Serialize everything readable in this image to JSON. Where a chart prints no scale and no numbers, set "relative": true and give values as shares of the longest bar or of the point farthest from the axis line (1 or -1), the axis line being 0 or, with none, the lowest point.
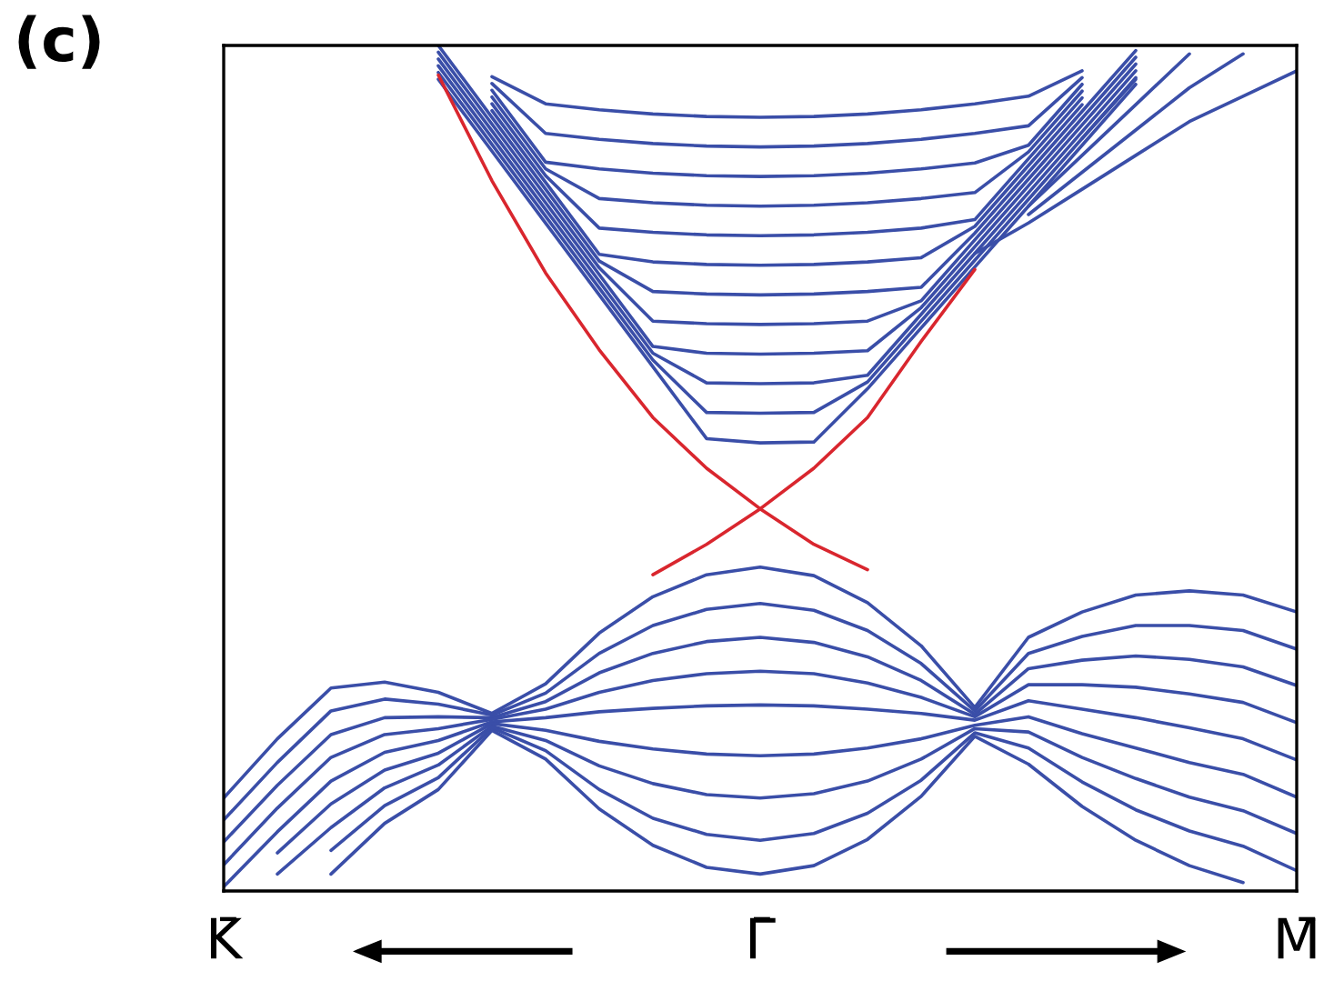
{
  "chart_data": {
    "type": "line",
    "title": "(c)",
    "relative": true,
    "categories": [
      "K̄",
      null,
      null,
      null,
      null,
      null,
      null,
      null,
      null,
      null,
      "Γ̄",
      null,
      null,
      null,
      null,
      null,
      null,
      null,
      null,
      null,
      "M̄"
    ],
    "series": [
      {
        "color": "#3a4ea8",
        "values": [
          null,
          null,
          null,
          null,
          0.96,
          0.875,
          0.79,
          0.705,
          0.62,
          0.535,
          0.53,
          0.531,
          0.594,
          0.666,
          0.738,
          0.81,
          0.882,
          0.954,
          null,
          null,
          null
        ]
      },
      {
        "color": "#3a4ea8",
        "values": [
          null,
          null,
          null,
          null,
          0.968,
          0.883,
          0.798,
          0.713,
          0.628,
          0.566,
          0.565,
          0.566,
          0.602,
          0.674,
          0.746,
          0.818,
          0.89,
          0.962,
          null,
          null,
          null
        ]
      },
      {
        "color": "#3a4ea8",
        "values": [
          null,
          null,
          null,
          null,
          0.976,
          0.891,
          0.806,
          0.721,
          0.636,
          0.601,
          0.6,
          0.601,
          0.61,
          0.682,
          0.754,
          0.826,
          0.898,
          0.97,
          null,
          null,
          null
        ]
      },
      {
        "color": "#3a4ea8",
        "values": [
          null,
          null,
          null,
          null,
          0.984,
          0.899,
          0.814,
          0.729,
          0.644,
          0.636,
          0.635,
          0.636,
          0.639,
          0.69,
          0.762,
          0.834,
          0.906,
          0.978,
          null,
          null,
          null
        ]
      },
      {
        "color": "#3a4ea8",
        "values": [
          null,
          null,
          null,
          null,
          0.992,
          0.907,
          0.822,
          0.737,
          0.674,
          0.671,
          0.67,
          0.671,
          0.674,
          0.698,
          0.77,
          0.842,
          0.914,
          0.986,
          null,
          null,
          null
        ]
      },
      {
        "color": "#3a4ea8",
        "values": [
          null,
          null,
          null,
          null,
          1.0,
          0.915,
          0.83,
          0.745,
          0.709,
          0.706,
          0.705,
          0.706,
          0.709,
          0.714,
          0.778,
          0.85,
          0.922,
          0.994,
          null,
          null,
          null
        ]
      },
      {
        "color": "#3a4ea8",
        "values": [
          null,
          null,
          null,
          null,
          null,
          0.923,
          0.838,
          0.753,
          0.744,
          0.741,
          0.74,
          0.741,
          0.744,
          0.749,
          0.786,
          0.858,
          0.93,
          null,
          null,
          null,
          null
        ]
      },
      {
        "color": "#3a4ea8",
        "values": [
          null,
          null,
          null,
          null,
          null,
          0.931,
          0.846,
          0.784,
          0.779,
          0.776,
          0.775,
          0.776,
          0.779,
          0.784,
          0.794,
          0.866,
          0.938,
          null,
          null,
          null,
          null
        ]
      },
      {
        "color": "#3a4ea8",
        "values": [
          null,
          null,
          null,
          null,
          null,
          0.939,
          0.854,
          0.819,
          0.814,
          0.811,
          0.81,
          0.811,
          0.814,
          0.819,
          0.826,
          0.874,
          0.946,
          null,
          null,
          null,
          null
        ]
      },
      {
        "color": "#3a4ea8",
        "values": [
          null,
          null,
          null,
          null,
          null,
          0.947,
          0.862,
          0.854,
          0.849,
          0.846,
          0.845,
          0.846,
          0.849,
          0.854,
          0.861,
          0.882,
          0.954,
          null,
          null,
          null,
          null
        ]
      },
      {
        "color": "#3a4ea8",
        "values": [
          null,
          null,
          null,
          null,
          null,
          0.955,
          0.896,
          0.889,
          0.884,
          0.881,
          0.88,
          0.881,
          0.884,
          0.889,
          0.896,
          0.905,
          0.962,
          null,
          null,
          null,
          null
        ]
      },
      {
        "color": "#3a4ea8",
        "values": [
          null,
          null,
          null,
          null,
          null,
          0.963,
          0.931,
          0.924,
          0.919,
          0.916,
          0.915,
          0.916,
          0.919,
          0.924,
          0.931,
          0.94,
          0.97,
          null,
          null,
          null,
          null
        ]
      },
      {
        "color": "#3a4ea8",
        "values": [
          null,
          null,
          null,
          null,
          null,
          null,
          null,
          null,
          null,
          null,
          null,
          null,
          null,
          null,
          0.754,
          0.79,
          0.83,
          0.87,
          0.91,
          0.94,
          0.97
        ]
      },
      {
        "color": "#3a4ea8",
        "values": [
          null,
          null,
          null,
          null,
          null,
          null,
          null,
          null,
          null,
          null,
          null,
          null,
          null,
          null,
          null,
          0.8,
          0.85,
          0.9,
          0.95,
          0.99,
          null
        ]
      },
      {
        "color": "#3a4ea8",
        "values": [
          null,
          null,
          null,
          null,
          null,
          null,
          null,
          null,
          null,
          null,
          null,
          null,
          null,
          null,
          null,
          0.81,
          0.87,
          0.93,
          0.99,
          null,
          null
        ]
      },
      {
        "color": "#3a4ea8",
        "values": [
          null,
          null,
          null,
          null,
          null,
          null,
          null,
          null,
          null,
          null,
          null,
          null,
          null,
          null,
          null,
          null,
          0.89,
          0.96,
          null,
          null,
          null
        ]
      },
      {
        "color": "#3a4ea8",
        "values": [
          0.11,
          0.18,
          0.24,
          0.247,
          0.235,
          0.21,
          0.245,
          0.305,
          0.348,
          0.374,
          0.383,
          0.373,
          0.341,
          0.29,
          0.217,
          0.3,
          0.33,
          0.35,
          0.355,
          0.35,
          0.33
        ]
      },
      {
        "color": "#3a4ea8",
        "values": [
          0.084,
          0.152,
          0.213,
          0.227,
          0.221,
          0.208,
          0.234,
          0.281,
          0.314,
          0.333,
          0.34,
          0.332,
          0.308,
          0.269,
          0.213,
          0.281,
          0.301,
          0.314,
          0.314,
          0.308,
          0.286
        ]
      },
      {
        "color": "#3a4ea8",
        "values": [
          0.058,
          0.125,
          0.185,
          0.205,
          0.206,
          0.205,
          0.224,
          0.258,
          0.281,
          0.295,
          0.3,
          0.294,
          0.277,
          0.249,
          0.209,
          0.263,
          0.273,
          0.278,
          0.274,
          0.265,
          0.243
        ]
      },
      {
        "color": "#3a4ea8",
        "values": [
          0.031,
          0.098,
          0.158,
          0.185,
          0.192,
          0.203,
          0.215,
          0.235,
          0.249,
          0.257,
          0.26,
          0.257,
          0.246,
          0.229,
          0.206,
          0.244,
          0.244,
          0.241,
          0.233,
          0.223,
          0.199
        ]
      },
      {
        "color": "#3a4ea8",
        "values": [
          0.005,
          0.07,
          0.13,
          0.164,
          0.178,
          0.2,
          0.205,
          0.212,
          0.216,
          0.219,
          0.22,
          0.219,
          0.215,
          0.21,
          0.202,
          0.225,
          0.215,
          0.205,
          0.193,
          0.18,
          0.155
        ]
      },
      {
        "color": "#3a4ea8",
        "values": [
          null,
          0.045,
          0.103,
          0.143,
          0.163,
          0.198,
          0.19,
          0.177,
          0.168,
          0.162,
          0.16,
          0.162,
          0.169,
          0.18,
          0.196,
          0.206,
          0.186,
          0.169,
          0.152,
          0.138,
          0.111
        ]
      },
      {
        "color": "#3a4ea8",
        "values": [
          null,
          0.02,
          0.075,
          0.122,
          0.149,
          0.195,
          0.178,
          0.148,
          0.127,
          0.114,
          0.11,
          0.115,
          0.13,
          0.156,
          0.192,
          0.188,
          0.158,
          0.133,
          0.111,
          0.095,
          0.068
        ]
      },
      {
        "color": "#3a4ea8",
        "values": [
          null,
          null,
          0.048,
          0.101,
          0.134,
          0.193,
          0.166,
          0.12,
          0.086,
          0.067,
          0.06,
          0.068,
          0.092,
          0.131,
          0.187,
          0.169,
          0.129,
          0.096,
          0.071,
          0.053,
          0.024
        ]
      },
      {
        "color": "#3a4ea8",
        "values": [
          null,
          null,
          0.02,
          0.08,
          0.12,
          0.19,
          0.156,
          0.097,
          0.054,
          0.028,
          0.02,
          0.03,
          0.061,
          0.112,
          0.183,
          0.15,
          0.1,
          0.06,
          0.03,
          0.01,
          null
        ]
      },
      {
        "color": "#d9262e",
        "values": [
          null,
          null,
          null,
          null,
          0.965,
          0.84,
          0.731,
          0.64,
          0.56,
          0.5,
          0.452,
          0.41,
          0.38,
          null,
          null,
          null,
          null,
          null,
          null,
          null,
          null
        ]
      },
      {
        "color": "#d9262e",
        "values": [
          null,
          null,
          null,
          null,
          null,
          null,
          null,
          null,
          0.374,
          0.41,
          0.452,
          0.5,
          0.56,
          0.65,
          0.735,
          null,
          null,
          null,
          null,
          null,
          null
        ]
      }
    ]
  }
}
